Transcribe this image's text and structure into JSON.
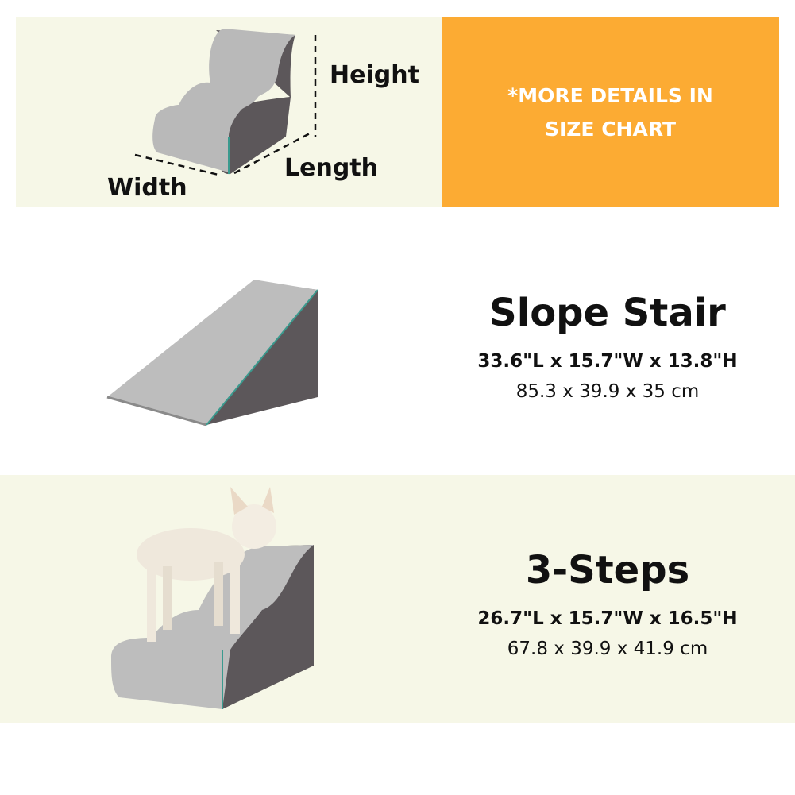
{
  "dimension_panel": {
    "labels": {
      "height": "Height",
      "length": "Length",
      "width": "Width"
    },
    "note": "*MORE DETAILS IN SIZE CHART",
    "note_bg": "#fcab33"
  },
  "products": [
    {
      "name": "Slope Stair",
      "imperial": "33.6\"L x 15.7\"W x 13.8\"H",
      "metric": "85.3 x 39.9 x 35 cm"
    },
    {
      "name": "3-Steps",
      "imperial": "26.7\"L x 15.7\"W x 16.5\"H",
      "metric": "67.8 x 39.9 x 41.9 cm"
    }
  ],
  "colors": {
    "panel_bg": "#f6f7e7",
    "foam_top": "#b9b9b9",
    "foam_side": "#5c575a",
    "trim": "#3a9a8e"
  }
}
